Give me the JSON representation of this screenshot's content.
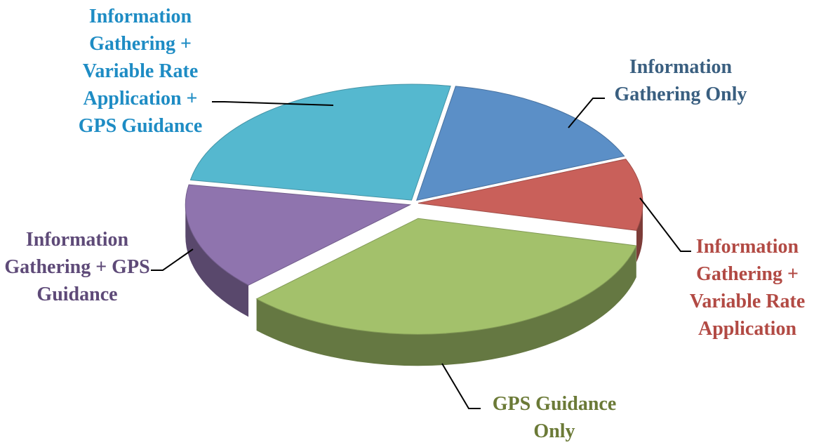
{
  "chart_data": {
    "type": "pie",
    "categories": [
      "Information Gathering Only",
      "Information Gathering + Variable Rate Application",
      "GPS Guidance Only",
      "Information Gathering + GPS Guidance",
      "Information Gathering + Variable Rate Application + GPS Guidance"
    ],
    "values": [
      16,
      10,
      34,
      15,
      25
    ],
    "colors": [
      "#5b8fc7",
      "#c9605a",
      "#a3c16b",
      "#8f74ae",
      "#55b8cf"
    ]
  }
}
